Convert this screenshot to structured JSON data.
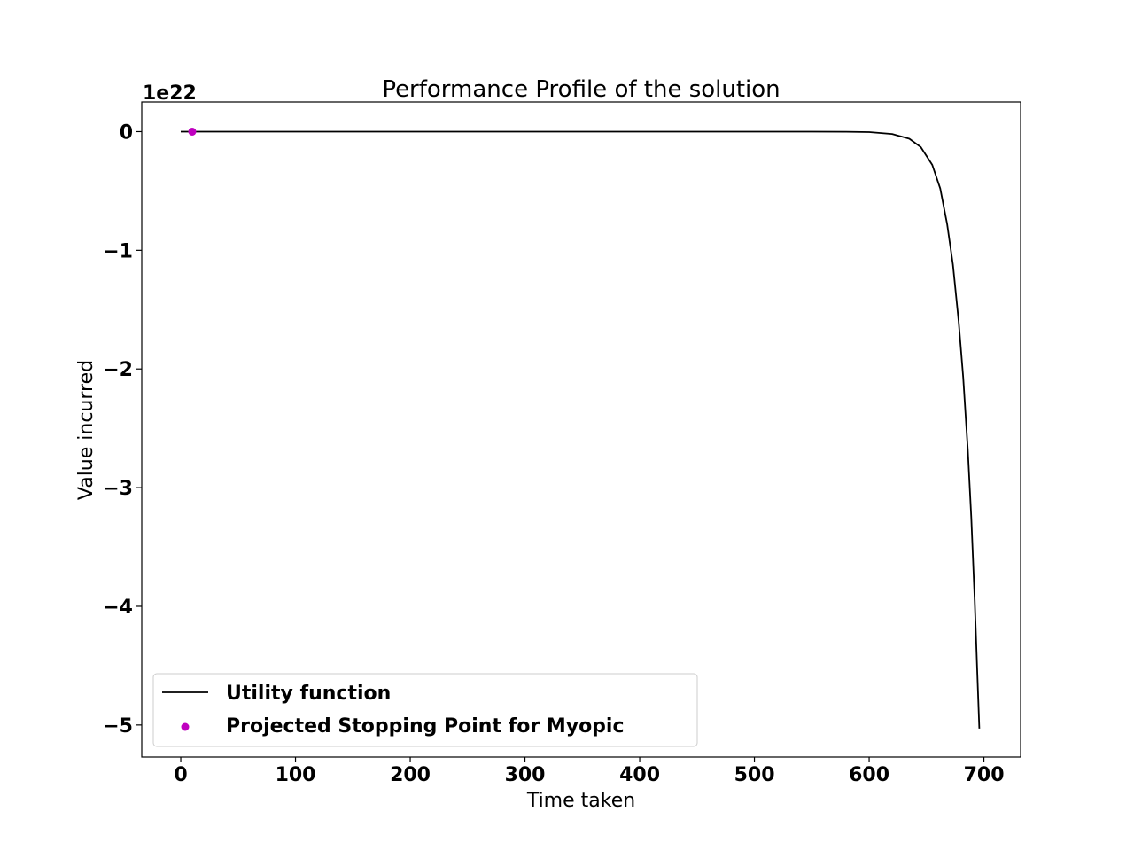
{
  "chart_data": {
    "type": "line",
    "title": "Performance Profile of the solution",
    "xlabel": "Time taken",
    "ylabel": "Value incurred",
    "y_offset_label": "1e22",
    "xlim": [
      -34,
      732
    ],
    "ylim": [
      -5.27,
      0.25
    ],
    "xticks": [
      0,
      100,
      200,
      300,
      400,
      500,
      600,
      700
    ],
    "xtick_labels": [
      "0",
      "100",
      "200",
      "300",
      "400",
      "500",
      "600",
      "700"
    ],
    "yticks": [
      0,
      -1,
      -2,
      -3,
      -4,
      -5
    ],
    "ytick_labels": [
      "0",
      "−1",
      "−2",
      "−3",
      "−4",
      "−5"
    ],
    "grid": false,
    "legend_position": "lower-left",
    "series": [
      {
        "name": "Utility function",
        "kind": "line",
        "color": "#000000",
        "x": [
          0,
          100,
          200,
          300,
          400,
          500,
          550,
          580,
          600,
          620,
          635,
          645,
          655,
          662,
          668,
          673,
          678,
          682,
          686,
          689,
          692,
          694,
          696
        ],
        "y": [
          0,
          0,
          0,
          0,
          0,
          0,
          0,
          -0.001,
          -0.004,
          -0.02,
          -0.06,
          -0.13,
          -0.28,
          -0.48,
          -0.78,
          -1.12,
          -1.6,
          -2.07,
          -2.68,
          -3.25,
          -3.95,
          -4.5,
          -5.03
        ]
      },
      {
        "name": "Projected Stopping Point for Myopic",
        "kind": "scatter",
        "color": "#bf00bf",
        "x": [
          10
        ],
        "y": [
          0
        ]
      }
    ]
  }
}
